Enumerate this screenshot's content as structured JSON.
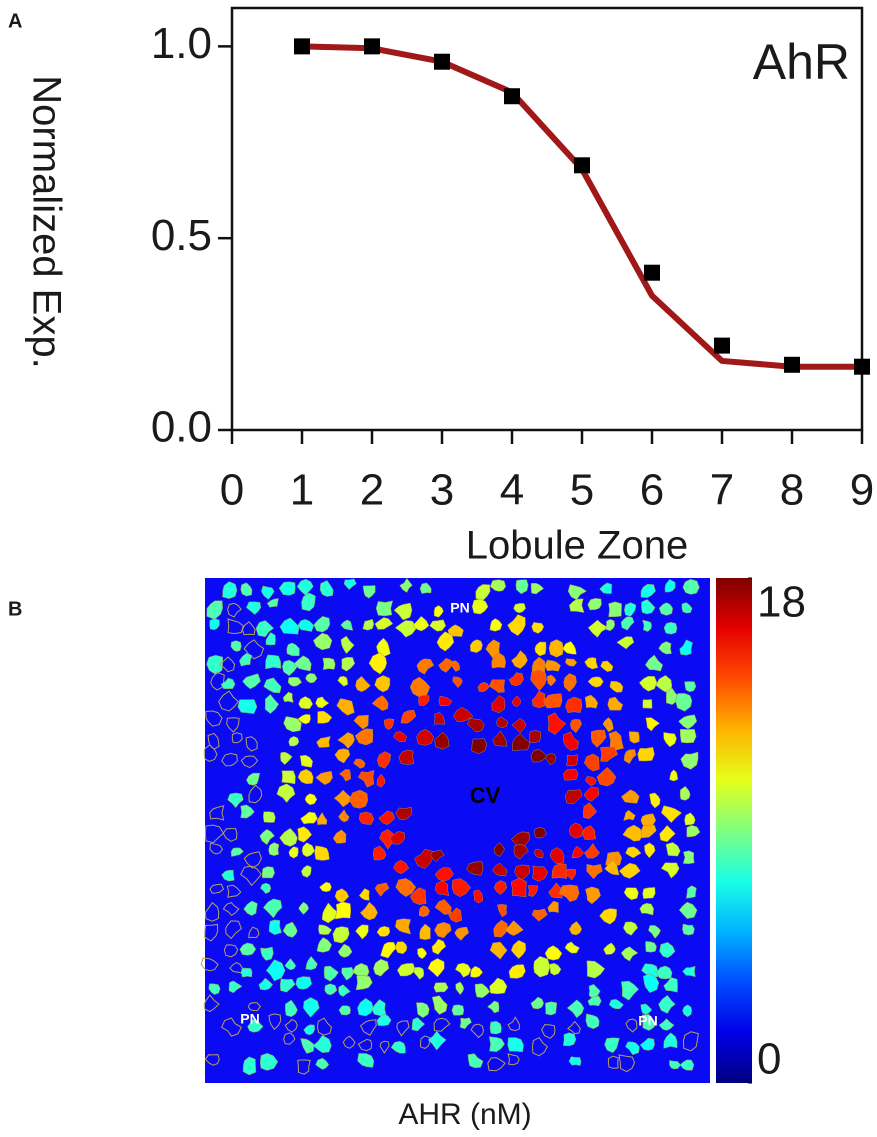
{
  "chart_data": [
    {
      "type": "scatter",
      "panel_label": "A",
      "annotation": "AhR",
      "xlabel": "Lobule Zone",
      "ylabel": "Normalized Exp.",
      "x": [
        1,
        2,
        3,
        4,
        5,
        6,
        7,
        8,
        9
      ],
      "series": [
        {
          "color": "#000000",
          "marker": "square",
          "values": [
            1.0,
            1.0,
            0.96,
            0.87,
            0.69,
            0.41,
            0.22,
            0.17,
            0.165
          ]
        },
        {
          "color": "#a01818",
          "marker": "line",
          "values": [
            1.0,
            0.995,
            0.96,
            0.88,
            0.68,
            0.35,
            0.18,
            0.165,
            0.165
          ]
        }
      ],
      "xlim": [
        0,
        9
      ],
      "xticks": [
        0,
        1,
        2,
        3,
        4,
        5,
        6,
        7,
        8,
        9
      ],
      "ylim": [
        0,
        1.1
      ],
      "yticks": [
        {
          "value": 0,
          "label": "0.0"
        },
        {
          "value": 0.5,
          "label": "0.5"
        },
        {
          "value": 1,
          "label": "1.0"
        }
      ]
    },
    {
      "type": "heatmap",
      "panel_label": "B",
      "xlabel": "AHR (nM)",
      "annotations": [
        "PN",
        "PN",
        "PN",
        "CV"
      ],
      "clim": [
        0,
        18
      ],
      "cticks": [
        0,
        18
      ],
      "colormap": "jet",
      "background": "#0a0af5"
    }
  ]
}
